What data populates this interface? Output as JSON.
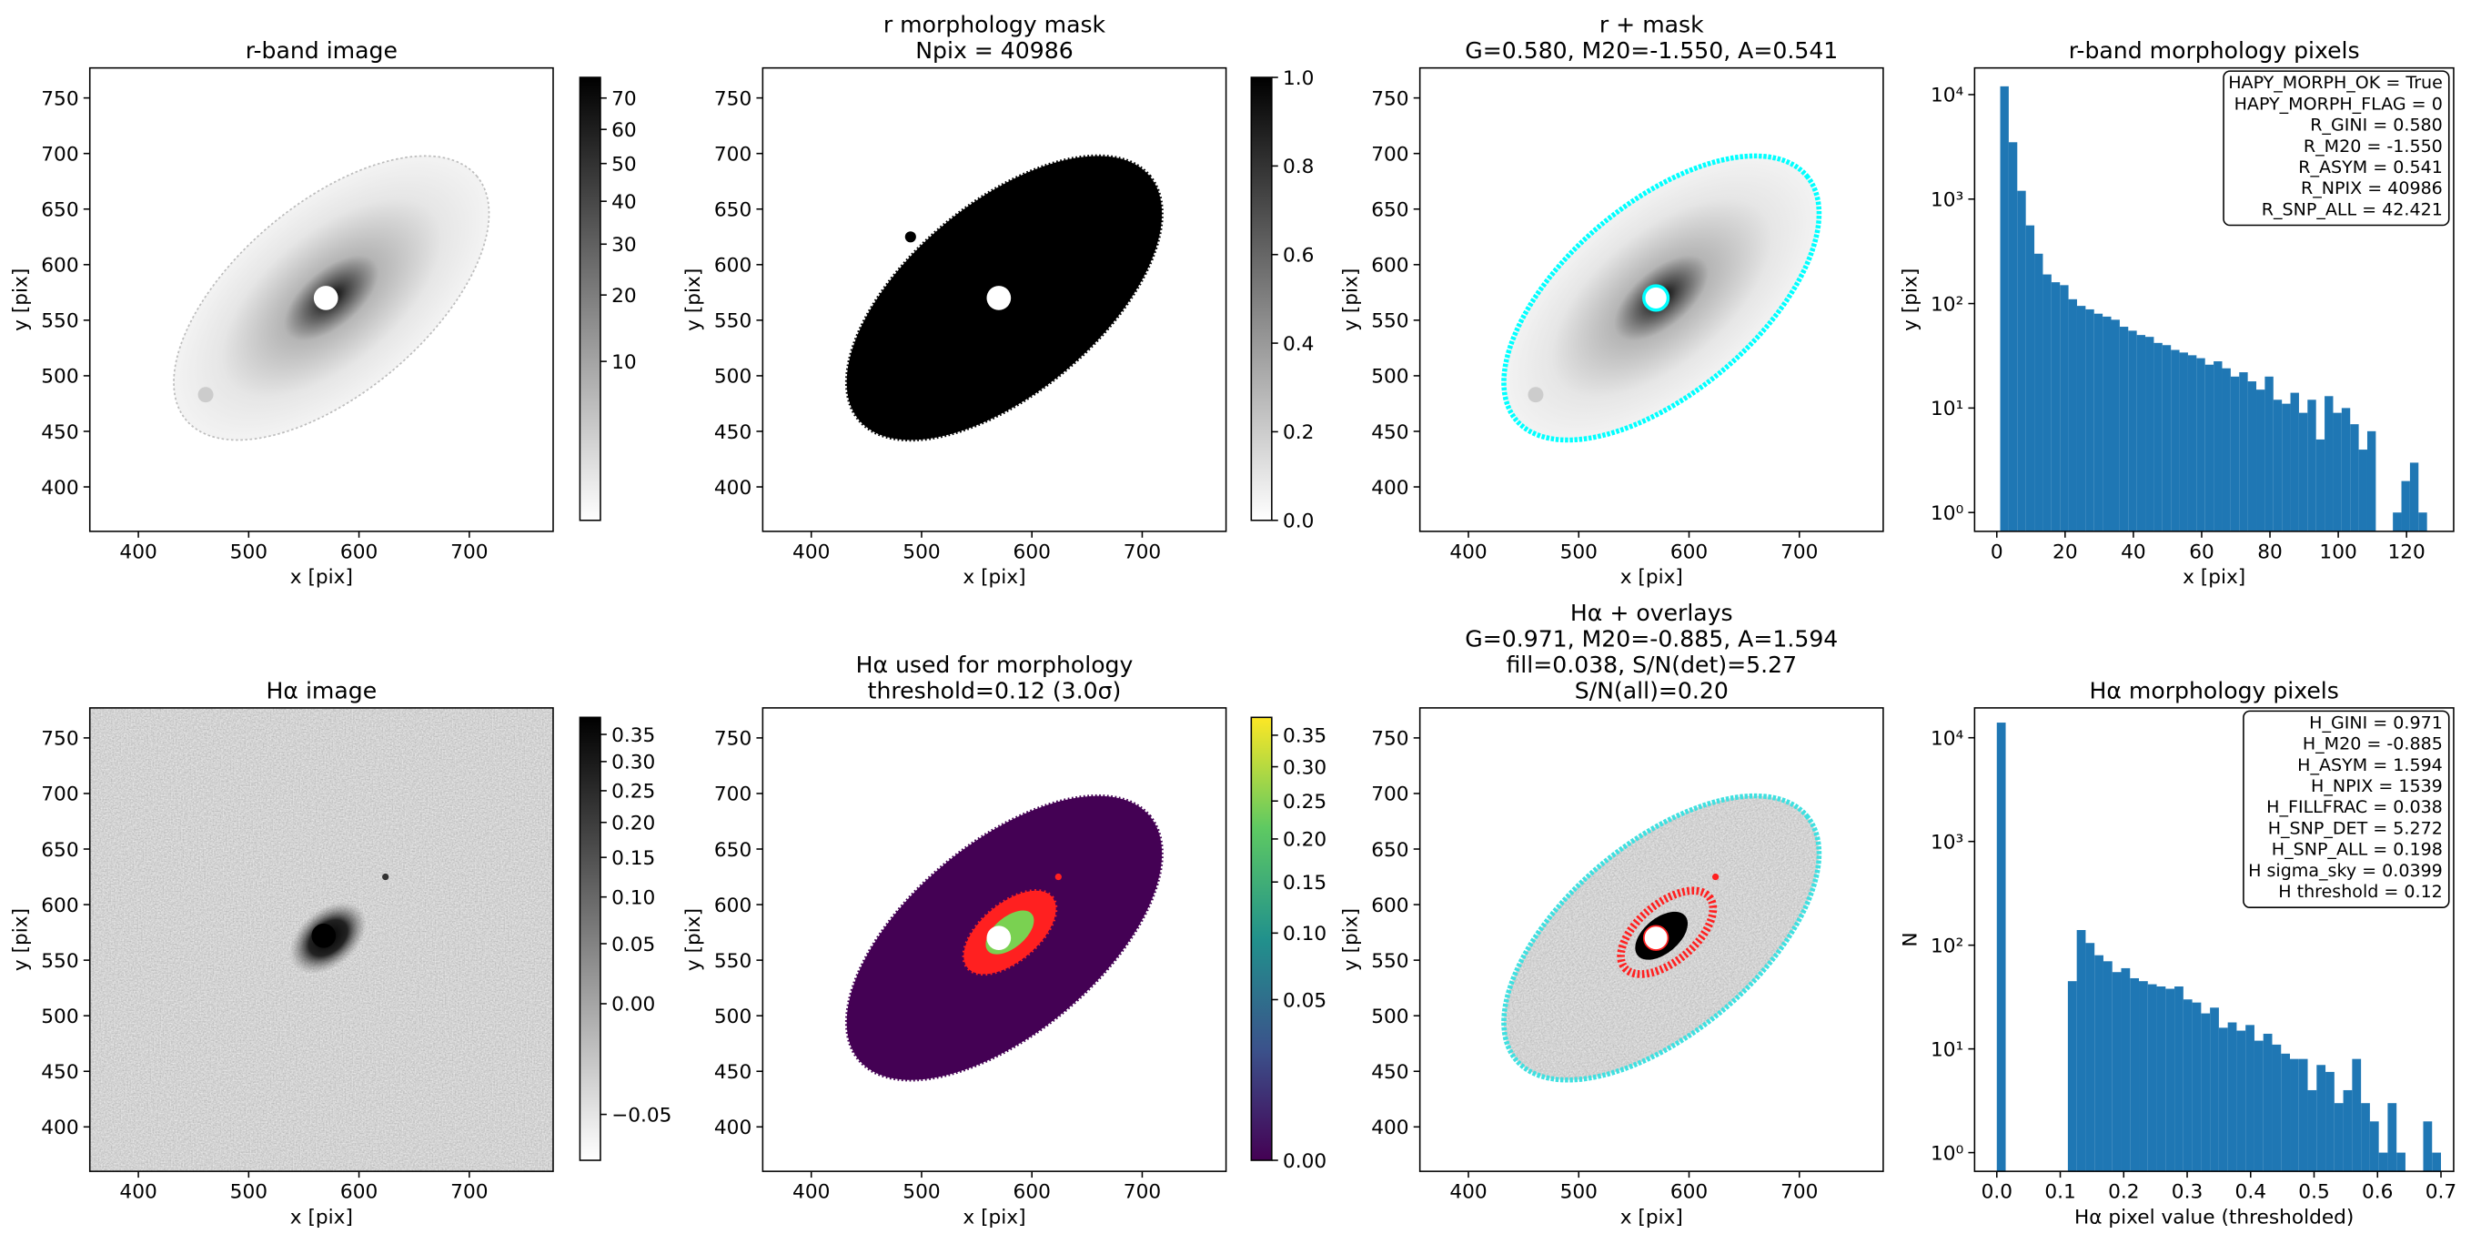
{
  "chart_data": [
    {
      "type": "image",
      "title": [
        "r-band image"
      ],
      "xlabel": "x [pix]",
      "ylabel": "y [pix]",
      "xlim": [
        356,
        776
      ],
      "ylim": [
        360,
        777
      ],
      "xticks": [
        400,
        500,
        600,
        700
      ],
      "yticks": [
        400,
        450,
        500,
        550,
        600,
        650,
        700,
        750
      ],
      "colorbar": {
        "cmap": "gray_r",
        "scale": "sqrt",
        "clim": [
          0.1,
          77
        ],
        "ticks": [
          10,
          20,
          30,
          40,
          50,
          60,
          70
        ]
      }
    },
    {
      "type": "image",
      "title": [
        "r morphology mask",
        "Npix = 40986"
      ],
      "xlabel": "x [pix]",
      "ylabel": "y [pix]",
      "xlim": [
        356,
        776
      ],
      "ylim": [
        360,
        777
      ],
      "xticks": [
        400,
        500,
        600,
        700
      ],
      "yticks": [
        400,
        450,
        500,
        550,
        600,
        650,
        700,
        750
      ],
      "colorbar": {
        "cmap": "gray_r",
        "scale": "linear",
        "clim": [
          0,
          1
        ],
        "ticks": [
          {
            "value": 0,
            "label": "0.0"
          },
          0.2,
          0.4,
          0.6,
          0.8,
          {
            "value": 1,
            "label": "1.0"
          }
        ]
      }
    },
    {
      "type": "image",
      "title": [
        "r + mask",
        "G=0.580, M20=-1.550, A=0.541"
      ],
      "xlabel": "x [pix]",
      "ylabel": "y [pix]",
      "xlim": [
        356,
        776
      ],
      "ylim": [
        360,
        777
      ],
      "xticks": [
        400,
        500,
        600,
        700
      ],
      "yticks": [
        400,
        450,
        500,
        550,
        600,
        650,
        700,
        750
      ]
    },
    {
      "type": "histogram",
      "title": [
        "r-band morphology pixels"
      ],
      "xlabel": "x [pix]",
      "ylabel": "y [pix]",
      "color": "#1f77b4",
      "log_y": true,
      "bins": [
        1,
        3.5,
        6,
        8.5,
        11,
        13.5,
        16,
        18.5,
        21,
        23.5,
        26,
        28.5,
        31,
        33.5,
        36,
        38.5,
        41,
        43.5,
        46,
        48.5,
        51,
        53.5,
        56,
        58.5,
        61,
        63.5,
        66,
        68.5,
        71,
        73.5,
        76,
        78.5,
        81,
        83.5,
        86,
        88.5,
        91,
        93.5,
        96,
        98.5,
        101,
        103.5,
        106,
        108.5,
        111,
        113.5,
        116,
        118.5,
        121,
        123.5,
        126
      ],
      "values": [
        12000,
        3500,
        1200,
        560,
        300,
        190,
        160,
        150,
        110,
        95,
        88,
        80,
        75,
        70,
        60,
        55,
        50,
        48,
        42,
        40,
        36,
        34,
        32,
        30,
        26,
        28,
        24,
        20,
        22,
        18,
        15,
        20,
        12,
        11,
        14,
        9,
        12,
        5,
        13,
        9,
        10,
        7,
        4,
        6,
        0,
        0,
        1,
        2,
        3,
        1
      ],
      "xlim": [
        -6.5,
        133.8
      ],
      "ylim": [
        0.66,
        18000
      ],
      "xticks": [
        0,
        20,
        40,
        60,
        80,
        100,
        120
      ],
      "yticks": [
        {
          "value": 1,
          "label": "10⁰"
        },
        {
          "value": 10,
          "label": "10¹"
        },
        {
          "value": 100,
          "label": "10²"
        },
        {
          "value": 1000,
          "label": "10³"
        },
        {
          "value": 10000,
          "label": "10⁴"
        }
      ],
      "annotation": [
        "HAPY_MORPH_OK = True",
        "HAPY_MORPH_FLAG = 0",
        "R_GINI = 0.580",
        "R_M20 = -1.550",
        "R_ASYM = 0.541",
        "R_NPIX = 40986",
        "R_SNP_ALL = 42.421"
      ]
    },
    {
      "type": "image",
      "title": [
        "Hα image"
      ],
      "xlabel": "x [pix]",
      "ylabel": "y [pix]",
      "xlim": [
        356,
        776
      ],
      "ylim": [
        360,
        777
      ],
      "xticks": [
        400,
        500,
        600,
        700
      ],
      "yticks": [
        400,
        450,
        500,
        550,
        600,
        650,
        700,
        750
      ],
      "colorbar": {
        "cmap": "gray_r",
        "scale": "sqrt",
        "clim": [
          -0.0547,
          0.383
        ],
        "ticks": [
          {
            "value": -0.05,
            "label": "−0.05"
          },
          {
            "value": 0,
            "label": "0.00"
          },
          0.05,
          {
            "value": 0.1,
            "label": "0.10"
          },
          0.15,
          {
            "value": 0.2,
            "label": "0.20"
          },
          0.25,
          {
            "value": 0.3,
            "label": "0.30"
          },
          0.35
        ]
      }
    },
    {
      "type": "image",
      "title": [
        "Hα used for morphology",
        "threshold=0.12 (3.0σ)"
      ],
      "xlabel": "x [pix]",
      "ylabel": "y [pix]",
      "xlim": [
        356,
        776
      ],
      "ylim": [
        360,
        777
      ],
      "xticks": [
        400,
        500,
        600,
        700
      ],
      "yticks": [
        400,
        450,
        500,
        550,
        600,
        650,
        700,
        750
      ],
      "colorbar": {
        "cmap": "viridis",
        "scale": "sqrt",
        "clim": [
          0,
          0.38
        ],
        "ticks": [
          {
            "value": 0,
            "label": "0.00"
          },
          0.05,
          {
            "value": 0.1,
            "label": "0.10"
          },
          0.15,
          {
            "value": 0.2,
            "label": "0.20"
          },
          0.25,
          {
            "value": 0.3,
            "label": "0.30"
          },
          0.35
        ]
      }
    },
    {
      "type": "image",
      "title": [
        "Hα + overlays",
        "G=0.971, M20=-0.885, A=1.594",
        "fill=0.038, S/N(det)=5.27",
        "S/N(all)=0.20"
      ],
      "xlabel": "x [pix]",
      "ylabel": "y [pix]",
      "xlim": [
        356,
        776
      ],
      "ylim": [
        360,
        777
      ],
      "xticks": [
        400,
        500,
        600,
        700
      ],
      "yticks": [
        400,
        450,
        500,
        550,
        600,
        650,
        700,
        750
      ]
    },
    {
      "type": "histogram",
      "title": [
        "Hα morphology pixels"
      ],
      "xlabel": "Hα pixel value (thresholded)",
      "ylabel": "N",
      "color": "#1f77b4",
      "log_y": true,
      "bins": [
        0,
        0.014,
        0.028,
        0.042,
        0.056,
        0.07,
        0.084,
        0.098,
        0.112,
        0.126,
        0.14,
        0.154,
        0.168,
        0.182,
        0.196,
        0.21,
        0.224,
        0.238,
        0.252,
        0.266,
        0.28,
        0.294,
        0.308,
        0.322,
        0.336,
        0.35,
        0.364,
        0.378,
        0.392,
        0.406,
        0.42,
        0.434,
        0.448,
        0.462,
        0.476,
        0.49,
        0.504,
        0.518,
        0.532,
        0.546,
        0.56,
        0.574,
        0.588,
        0.602,
        0.616,
        0.63,
        0.644,
        0.658,
        0.672,
        0.686,
        0.7
      ],
      "values": [
        14000,
        0,
        0,
        0,
        0,
        0,
        0,
        0,
        45,
        140,
        105,
        80,
        70,
        55,
        60,
        48,
        45,
        42,
        40,
        38,
        40,
        30,
        28,
        22,
        25,
        16,
        18,
        15,
        17,
        12,
        14,
        11,
        9,
        8,
        8,
        4,
        7,
        6,
        3,
        4,
        8,
        3,
        2,
        1,
        3,
        1,
        0,
        0,
        2,
        1
      ],
      "xlim": [
        -0.035,
        0.72
      ],
      "ylim": [
        0.66,
        19400
      ],
      "xticks": [
        {
          "value": 0,
          "label": "0.0"
        },
        0.1,
        0.2,
        0.3,
        0.4,
        0.5,
        0.6,
        0.7
      ],
      "yticks": [
        {
          "value": 1,
          "label": "10⁰"
        },
        {
          "value": 10,
          "label": "10¹"
        },
        {
          "value": 100,
          "label": "10²"
        },
        {
          "value": 1000,
          "label": "10³"
        },
        {
          "value": 10000,
          "label": "10⁴"
        }
      ],
      "annotation": [
        "H_GINI = 0.971",
        "H_M20 = -0.885",
        "H_ASYM = 1.594",
        "H_NPIX = 1539",
        "H_FILLFRAC = 0.038",
        "H_SNP_DET = 5.272",
        "H_SNP_ALL = 0.198",
        "H sigma_sky = 0.0399",
        "H threshold = 0.12"
      ]
    }
  ]
}
